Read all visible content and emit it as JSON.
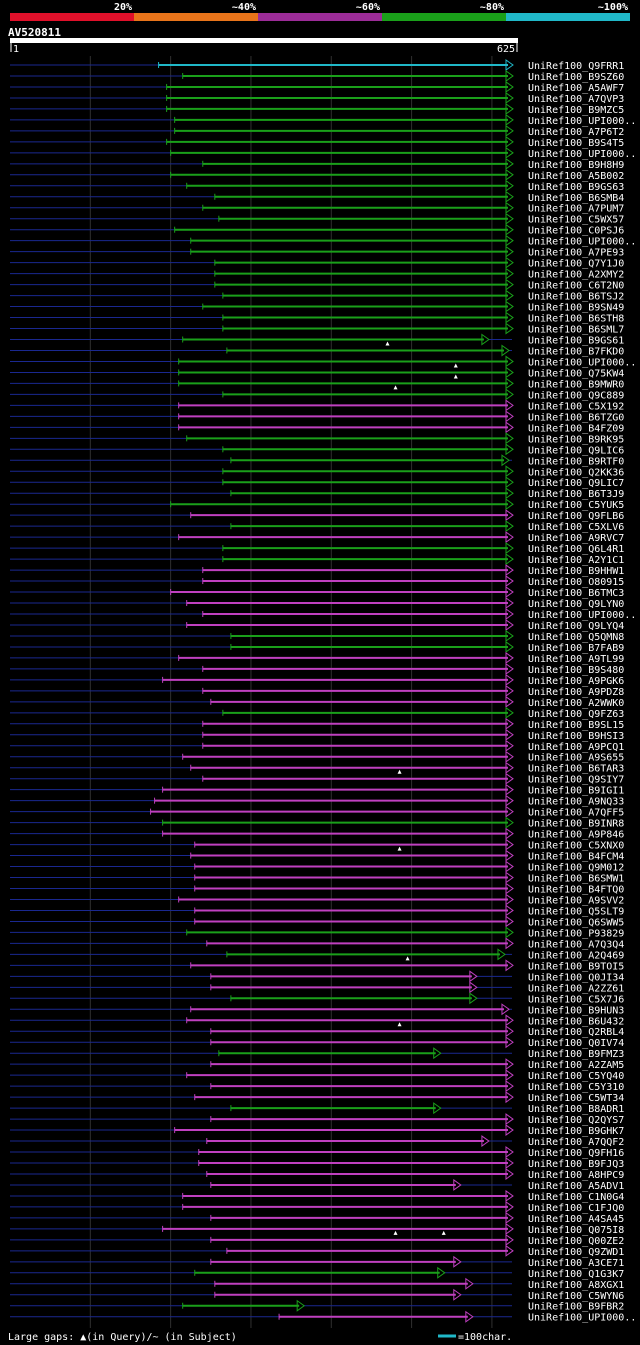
{
  "chart_data": {
    "type": "alignment-overview",
    "query_id": "AV520811",
    "query_start_label": "1",
    "query_end_label": "625",
    "query_length": 625,
    "identity_legend": [
      {
        "label": "20%",
        "color": "#e0102a"
      },
      {
        "label": "~40%",
        "color": "#e8741a"
      },
      {
        "label": "~60%",
        "color": "#9c2c98"
      },
      {
        "label": "~80%",
        "color": "#1aa01a"
      },
      {
        "label": "~100%",
        "color": "#20b8c8"
      }
    ],
    "colors": {
      "high_identity": "#20b8c8",
      "green": "#1aa01a",
      "purple": "#c040c0",
      "unaligned": "#1a2890",
      "gridline": "#303030",
      "query_bar": "#ffffff",
      "label_text": "#ffffff"
    },
    "footer": {
      "gaps_text": "Large gaps: ▲(in Query)/~ (in Subject)",
      "scale_text": "=100char."
    },
    "hits": [
      {
        "id": "UniRef100_Q9FRR1",
        "start": 185,
        "end": 625,
        "color": "c"
      },
      {
        "id": "UniRef100_B9SZ60",
        "start": 215,
        "end": 625,
        "color": "g"
      },
      {
        "id": "UniRef100_A5AWF7",
        "start": 195,
        "end": 625,
        "color": "g"
      },
      {
        "id": "UniRef100_A7QVP3",
        "start": 195,
        "end": 625,
        "color": "g"
      },
      {
        "id": "UniRef100_B9MZC5",
        "start": 195,
        "end": 625,
        "color": "g"
      },
      {
        "id": "UniRef100_UPI000..",
        "start": 205,
        "end": 625,
        "color": "g"
      },
      {
        "id": "UniRef100_A7P6T2",
        "start": 205,
        "end": 625,
        "color": "g"
      },
      {
        "id": "UniRef100_B9S4T5",
        "start": 195,
        "end": 625,
        "color": "g"
      },
      {
        "id": "UniRef100_UPI000..",
        "start": 200,
        "end": 625,
        "color": "g"
      },
      {
        "id": "UniRef100_B9H8H9",
        "start": 240,
        "end": 625,
        "color": "g"
      },
      {
        "id": "UniRef100_A5B002",
        "start": 200,
        "end": 625,
        "color": "g"
      },
      {
        "id": "UniRef100_B9GS63",
        "start": 220,
        "end": 625,
        "color": "g"
      },
      {
        "id": "UniRef100_B6SMB4",
        "start": 255,
        "end": 625,
        "color": "g"
      },
      {
        "id": "UniRef100_A7PUM7",
        "start": 240,
        "end": 625,
        "color": "g"
      },
      {
        "id": "UniRef100_C5WX57",
        "start": 260,
        "end": 625,
        "color": "g"
      },
      {
        "id": "UniRef100_C0PSJ6",
        "start": 205,
        "end": 625,
        "color": "g"
      },
      {
        "id": "UniRef100_UPI000..",
        "start": 225,
        "end": 625,
        "color": "g"
      },
      {
        "id": "UniRef100_A7PE93",
        "start": 225,
        "end": 625,
        "color": "g"
      },
      {
        "id": "UniRef100_Q7Y1J0",
        "start": 255,
        "end": 625,
        "color": "g"
      },
      {
        "id": "UniRef100_A2XMY2",
        "start": 255,
        "end": 625,
        "color": "g"
      },
      {
        "id": "UniRef100_C6T2N0",
        "start": 255,
        "end": 625,
        "color": "g"
      },
      {
        "id": "UniRef100_B6TSJ2",
        "start": 265,
        "end": 625,
        "color": "g"
      },
      {
        "id": "UniRef100_B9SN49",
        "start": 240,
        "end": 625,
        "color": "g"
      },
      {
        "id": "UniRef100_B6STH8",
        "start": 265,
        "end": 625,
        "color": "g"
      },
      {
        "id": "UniRef100_B6SML7",
        "start": 265,
        "end": 625,
        "color": "g"
      },
      {
        "id": "UniRef100_B9GS61",
        "start": 215,
        "end": 595,
        "color": "g",
        "qgap": 470
      },
      {
        "id": "UniRef100_B7FKD0",
        "start": 270,
        "end": 620,
        "color": "g"
      },
      {
        "id": "UniRef100_UPI000..",
        "start": 210,
        "end": 625,
        "color": "g",
        "qgap": 555
      },
      {
        "id": "UniRef100_Q75KW4",
        "start": 210,
        "end": 625,
        "color": "g",
        "qgap": 555
      },
      {
        "id": "UniRef100_B9MWR0",
        "start": 210,
        "end": 625,
        "color": "g",
        "qgap": 480
      },
      {
        "id": "UniRef100_Q9C889",
        "start": 265,
        "end": 625,
        "color": "g"
      },
      {
        "id": "UniRef100_C5X192",
        "start": 210,
        "end": 625,
        "color": "p"
      },
      {
        "id": "UniRef100_B6TZG0",
        "start": 210,
        "end": 625,
        "color": "p"
      },
      {
        "id": "UniRef100_B4FZ09",
        "start": 210,
        "end": 625,
        "color": "p"
      },
      {
        "id": "UniRef100_B9RK95",
        "start": 220,
        "end": 625,
        "color": "g"
      },
      {
        "id": "UniRef100_Q9LIC6",
        "start": 265,
        "end": 625,
        "color": "g"
      },
      {
        "id": "UniRef100_B9RTF0",
        "start": 275,
        "end": 620,
        "color": "g"
      },
      {
        "id": "UniRef100_Q2KK36",
        "start": 265,
        "end": 625,
        "color": "g"
      },
      {
        "id": "UniRef100_Q9LIC7",
        "start": 265,
        "end": 625,
        "color": "g"
      },
      {
        "id": "UniRef100_B6T3J9",
        "start": 275,
        "end": 625,
        "color": "g"
      },
      {
        "id": "UniRef100_C5YUK5",
        "start": 200,
        "end": 625,
        "color": "g"
      },
      {
        "id": "UniRef100_Q9FLB6",
        "start": 225,
        "end": 625,
        "color": "p"
      },
      {
        "id": "UniRef100_C5XLV6",
        "start": 275,
        "end": 625,
        "color": "g"
      },
      {
        "id": "UniRef100_A9RVC7",
        "start": 210,
        "end": 625,
        "color": "p"
      },
      {
        "id": "UniRef100_Q6L4R1",
        "start": 265,
        "end": 625,
        "color": "g"
      },
      {
        "id": "UniRef100_A2Y1C1",
        "start": 265,
        "end": 625,
        "color": "g"
      },
      {
        "id": "UniRef100_B9HHW1",
        "start": 240,
        "end": 625,
        "color": "p"
      },
      {
        "id": "UniRef100_O80915",
        "start": 240,
        "end": 625,
        "color": "p"
      },
      {
        "id": "UniRef100_B6TMC3",
        "start": 200,
        "end": 625,
        "color": "p"
      },
      {
        "id": "UniRef100_Q9LYN0",
        "start": 220,
        "end": 625,
        "color": "p"
      },
      {
        "id": "UniRef100_UPI000..",
        "start": 240,
        "end": 625,
        "color": "p"
      },
      {
        "id": "UniRef100_Q9LYQ4",
        "start": 220,
        "end": 625,
        "color": "p"
      },
      {
        "id": "UniRef100_Q5QMN8",
        "start": 275,
        "end": 625,
        "color": "g"
      },
      {
        "id": "UniRef100_B7FAB9",
        "start": 275,
        "end": 625,
        "color": "g"
      },
      {
        "id": "UniRef100_A9TL99",
        "start": 210,
        "end": 625,
        "color": "p"
      },
      {
        "id": "UniRef100_B9S480",
        "start": 240,
        "end": 625,
        "color": "p"
      },
      {
        "id": "UniRef100_A9PGK6",
        "start": 190,
        "end": 625,
        "color": "p"
      },
      {
        "id": "UniRef100_A9PDZ8",
        "start": 240,
        "end": 625,
        "color": "p"
      },
      {
        "id": "UniRef100_A2WWK0",
        "start": 250,
        "end": 625,
        "color": "p"
      },
      {
        "id": "UniRef100_Q9FZ63",
        "start": 265,
        "end": 625,
        "color": "g"
      },
      {
        "id": "UniRef100_B9SL15",
        "start": 240,
        "end": 625,
        "color": "p"
      },
      {
        "id": "UniRef100_B9HSI3",
        "start": 240,
        "end": 625,
        "color": "p"
      },
      {
        "id": "UniRef100_A9PCQ1",
        "start": 240,
        "end": 625,
        "color": "p"
      },
      {
        "id": "UniRef100_A9S655",
        "start": 215,
        "end": 625,
        "color": "p"
      },
      {
        "id": "UniRef100_B6TAR3",
        "start": 225,
        "end": 625,
        "color": "p",
        "qgap": 485
      },
      {
        "id": "UniRef100_Q9SIY7",
        "start": 240,
        "end": 625,
        "color": "p"
      },
      {
        "id": "UniRef100_B9IGI1",
        "start": 190,
        "end": 625,
        "color": "p"
      },
      {
        "id": "UniRef100_A9NQ33",
        "start": 180,
        "end": 625,
        "color": "p"
      },
      {
        "id": "UniRef100_A7QFF5",
        "start": 175,
        "end": 625,
        "color": "p"
      },
      {
        "id": "UniRef100_B9INR8",
        "start": 190,
        "end": 625,
        "color": "g"
      },
      {
        "id": "UniRef100_A9P846",
        "start": 190,
        "end": 625,
        "color": "p"
      },
      {
        "id": "UniRef100_C5XNX0",
        "start": 230,
        "end": 625,
        "color": "p",
        "qgap": 485
      },
      {
        "id": "UniRef100_B4FCM4",
        "start": 225,
        "end": 625,
        "color": "p"
      },
      {
        "id": "UniRef100_Q9M012",
        "start": 230,
        "end": 625,
        "color": "p"
      },
      {
        "id": "UniRef100_B6SMW1",
        "start": 230,
        "end": 625,
        "color": "p"
      },
      {
        "id": "UniRef100_B4FTQ0",
        "start": 230,
        "end": 625,
        "color": "p"
      },
      {
        "id": "UniRef100_A9SVV2",
        "start": 210,
        "end": 625,
        "color": "p"
      },
      {
        "id": "UniRef100_Q5SLT9",
        "start": 230,
        "end": 625,
        "color": "p"
      },
      {
        "id": "UniRef100_Q6SWW5",
        "start": 230,
        "end": 625,
        "color": "p"
      },
      {
        "id": "UniRef100_P93829",
        "start": 220,
        "end": 625,
        "color": "g"
      },
      {
        "id": "UniRef100_A7Q3Q4",
        "start": 245,
        "end": 625,
        "color": "p"
      },
      {
        "id": "UniRef100_A2Q469",
        "start": 270,
        "end": 615,
        "color": "g",
        "qgap": 495
      },
      {
        "id": "UniRef100_B9TOI5",
        "start": 225,
        "end": 625,
        "color": "p"
      },
      {
        "id": "UniRef100_Q0JI34",
        "start": 250,
        "end": 580,
        "color": "p"
      },
      {
        "id": "UniRef100_A2ZZ61",
        "start": 250,
        "end": 580,
        "color": "p"
      },
      {
        "id": "UniRef100_C5X7J6",
        "start": 275,
        "end": 580,
        "color": "g"
      },
      {
        "id": "UniRef100_B9HUN3",
        "start": 225,
        "end": 620,
        "color": "p"
      },
      {
        "id": "UniRef100_B6U432",
        "start": 220,
        "end": 625,
        "color": "p",
        "qgap": 485
      },
      {
        "id": "UniRef100_Q2RBL4",
        "start": 250,
        "end": 625,
        "color": "p"
      },
      {
        "id": "UniRef100_Q0IV74",
        "start": 250,
        "end": 625,
        "color": "p"
      },
      {
        "id": "UniRef100_B9FMZ3",
        "start": 260,
        "end": 535,
        "color": "g"
      },
      {
        "id": "UniRef100_A2ZAM5",
        "start": 250,
        "end": 625,
        "color": "p"
      },
      {
        "id": "UniRef100_C5YQ40",
        "start": 220,
        "end": 625,
        "color": "p"
      },
      {
        "id": "UniRef100_C5Y310",
        "start": 250,
        "end": 625,
        "color": "p"
      },
      {
        "id": "UniRef100_C5WT34",
        "start": 230,
        "end": 625,
        "color": "p"
      },
      {
        "id": "UniRef100_B8ADR1",
        "start": 275,
        "end": 535,
        "color": "g"
      },
      {
        "id": "UniRef100_Q2QYS7",
        "start": 250,
        "end": 625,
        "color": "p"
      },
      {
        "id": "UniRef100_B9GHK7",
        "start": 205,
        "end": 625,
        "color": "p"
      },
      {
        "id": "UniRef100_A7QQF2",
        "start": 245,
        "end": 595,
        "color": "p"
      },
      {
        "id": "UniRef100_Q9FH16",
        "start": 235,
        "end": 625,
        "color": "p"
      },
      {
        "id": "UniRef100_B9FJQ3",
        "start": 235,
        "end": 625,
        "color": "p"
      },
      {
        "id": "UniRef100_A8HPC9",
        "start": 245,
        "end": 625,
        "color": "p"
      },
      {
        "id": "UniRef100_A5ADV1",
        "start": 250,
        "end": 560,
        "color": "p"
      },
      {
        "id": "UniRef100_C1N0G4",
        "start": 215,
        "end": 625,
        "color": "p"
      },
      {
        "id": "UniRef100_C1FJQ0",
        "start": 215,
        "end": 625,
        "color": "p"
      },
      {
        "id": "UniRef100_A4SA45",
        "start": 250,
        "end": 625,
        "color": "p"
      },
      {
        "id": "UniRef100_Q075I8",
        "start": 190,
        "end": 625,
        "color": "p",
        "qgap": 480,
        "qgap2": 540
      },
      {
        "id": "UniRef100_Q00ZE2",
        "start": 250,
        "end": 625,
        "color": "p"
      },
      {
        "id": "UniRef100_Q9ZWD1",
        "start": 270,
        "end": 625,
        "color": "p"
      },
      {
        "id": "UniRef100_A3CE71",
        "start": 250,
        "end": 560,
        "color": "p"
      },
      {
        "id": "UniRef100_Q1G3K7",
        "start": 230,
        "end": 540,
        "color": "g"
      },
      {
        "id": "UniRef100_A8XGX1",
        "start": 255,
        "end": 575,
        "color": "p"
      },
      {
        "id": "UniRef100_C5WYN6",
        "start": 255,
        "end": 560,
        "color": "p"
      },
      {
        "id": "UniRef100_B9FBR2",
        "start": 215,
        "end": 365,
        "color": "g"
      },
      {
        "id": "UniRef100_UPI000..",
        "start": 335,
        "end": 575,
        "color": "p"
      }
    ]
  }
}
